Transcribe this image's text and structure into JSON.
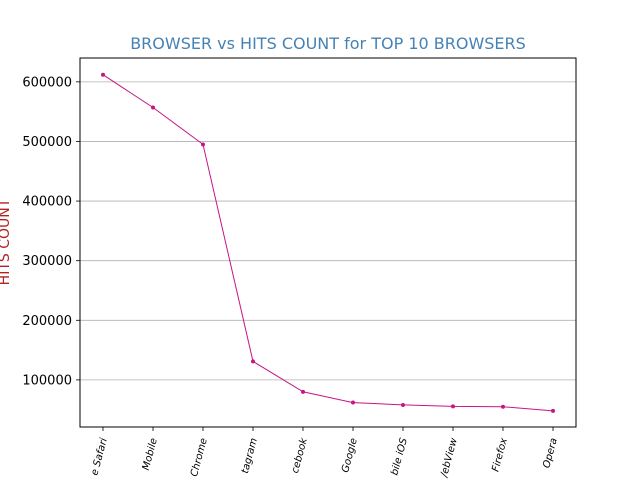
{
  "chart_data": {
    "type": "line",
    "title": "BROWSER vs HITS COUNT for TOP 10 BROWSERS",
    "xlabel": "",
    "ylabel": "HITS COUNT",
    "categories": [
      "e Safari",
      "Mobile",
      "Chrome",
      "tagram",
      "cebook",
      "Google",
      "bile iOS",
      "/ebView",
      "Firefox",
      "Opera"
    ],
    "series": [
      {
        "values": [
          612000,
          557000,
          495000,
          131000,
          80000,
          62000,
          58000,
          55500,
          55000,
          48000
        ]
      }
    ],
    "ylim": [
      21000,
      640000
    ],
    "yticks": [
      100000,
      200000,
      300000,
      400000,
      500000,
      600000
    ],
    "ytick_labels": [
      "100000",
      "200000",
      "300000",
      "400000",
      "500000",
      "600000"
    ],
    "grid": "horizontal",
    "colors": {
      "line": "#c71585",
      "title": "#4682b4",
      "ylabel": "#b22222",
      "grid": "#b0b0b0"
    }
  }
}
